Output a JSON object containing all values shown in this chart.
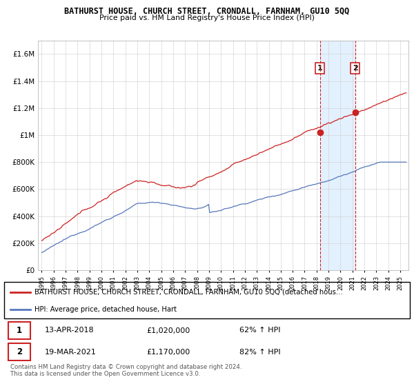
{
  "title": "BATHURST HOUSE, CHURCH STREET, CRONDALL, FARNHAM, GU10 5QQ",
  "subtitle": "Price paid vs. HM Land Registry's House Price Index (HPI)",
  "ylim": [
    0,
    1700000
  ],
  "yticks": [
    0,
    200000,
    400000,
    600000,
    800000,
    1000000,
    1200000,
    1400000,
    1600000
  ],
  "x_start_year": 1995,
  "x_end_year": 2025,
  "hpi_color": "#5577bb",
  "price_color": "#cc2222",
  "shade_color": "#ddeeff",
  "sale1_year": 2018.28,
  "sale1_price": 1020000,
  "sale2_year": 2021.22,
  "sale2_price": 1170000,
  "legend_line1": "BATHURST HOUSE, CHURCH STREET, CRONDALL, FARNHAM, GU10 5QQ (detached hous…",
  "legend_line2": "HPI: Average price, detached house, Hart",
  "table_row1": [
    "1",
    "13-APR-2018",
    "£1,020,000",
    "62% ↑ HPI"
  ],
  "table_row2": [
    "2",
    "19-MAR-2021",
    "£1,170,000",
    "82% ↑ HPI"
  ],
  "footnote": "Contains HM Land Registry data © Crown copyright and database right 2024.\nThis data is licensed under the Open Government Licence v3.0.",
  "background_color": "#ffffff",
  "grid_color": "#cccccc"
}
